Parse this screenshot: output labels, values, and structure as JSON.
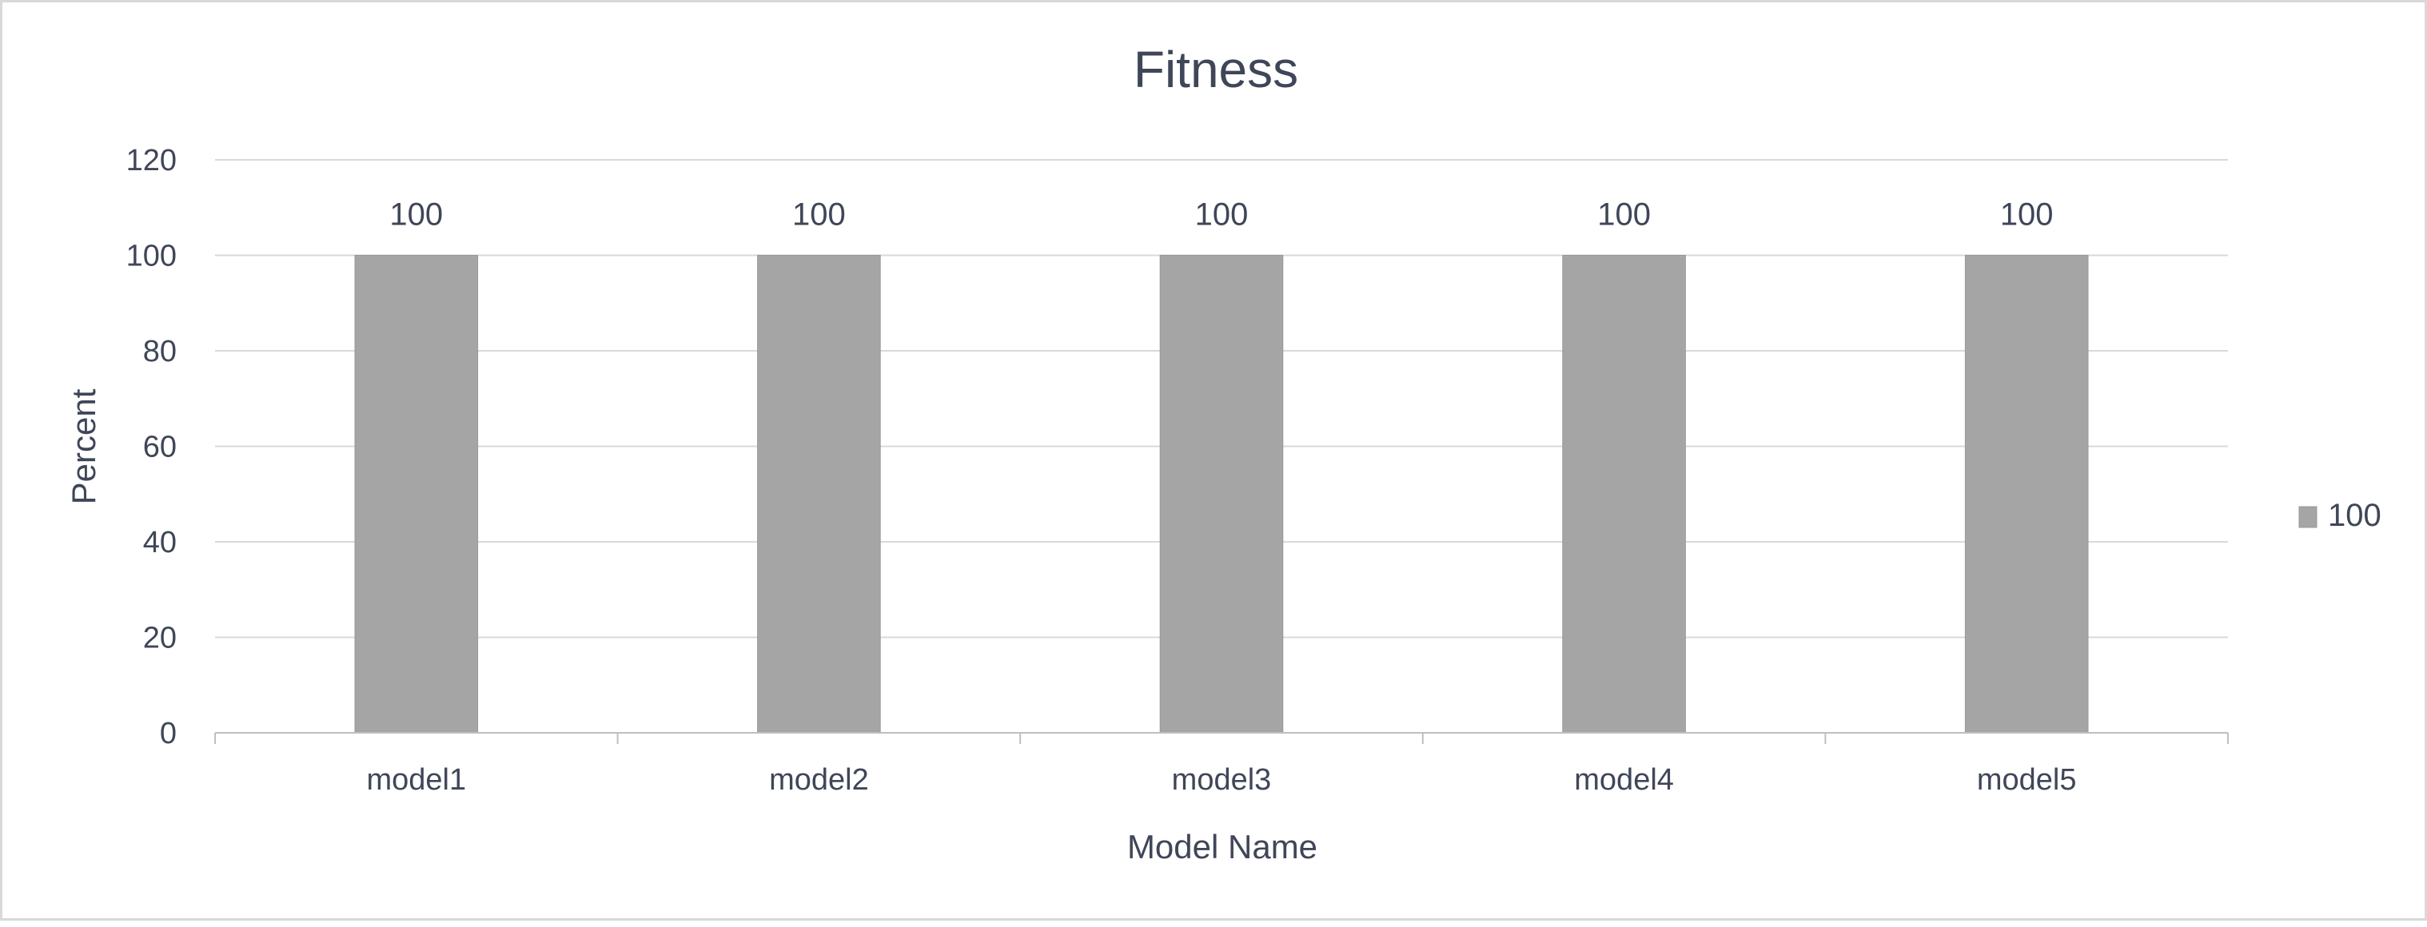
{
  "chart_data": {
    "type": "bar",
    "title": "Fitness",
    "xlabel": "Model Name",
    "ylabel": "Percent",
    "categories": [
      "model1",
      "model2",
      "model3",
      "model4",
      "model5"
    ],
    "series": [
      {
        "name": "100",
        "values": [
          100,
          100,
          100,
          100,
          100
        ],
        "color": "#a5a5a5"
      }
    ],
    "data_labels": [
      "100",
      "100",
      "100",
      "100",
      "100"
    ],
    "yticks": [
      "0",
      "20",
      "40",
      "60",
      "80",
      "100",
      "120"
    ],
    "ylim": [
      0,
      120
    ],
    "grid": true,
    "legend": "right"
  }
}
